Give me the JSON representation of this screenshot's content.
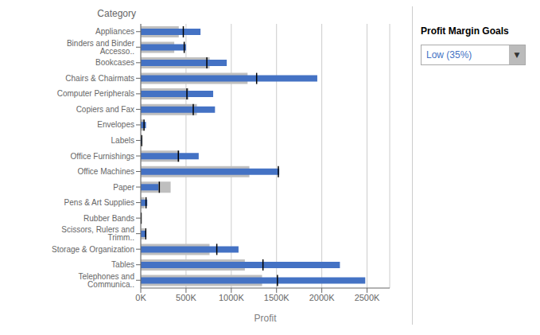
{
  "chart_data": {
    "type": "bar",
    "orientation": "horizontal",
    "ylabel": "Category",
    "xlabel": "Profit",
    "categories": [
      "Appliances",
      "Binders and Binder Accesso..",
      "Bookcases",
      "Chairs & Chairmats",
      "Computer Peripherals",
      "Copiers and Fax",
      "Envelopes",
      "Labels",
      "Office Furnishings",
      "Office Machines",
      "Paper",
      "Pens & Art Supplies",
      "Rubber Bands",
      "Scissors, Rulers and Trimm..",
      "Storage & Organization",
      "Tables",
      "Telephones and Communica.."
    ],
    "series": [
      {
        "type": "bar",
        "color": "#BFBFBF",
        "values": [
          420000,
          370000,
          760000,
          1180000,
          530000,
          620000,
          32000,
          6000,
          430000,
          1200000,
          330000,
          42000,
          4000,
          42000,
          760000,
          1150000,
          1340000
        ]
      },
      {
        "type": "bar",
        "color": "#4472C4",
        "values": [
          660000,
          500000,
          950000,
          1950000,
          800000,
          820000,
          58000,
          12000,
          640000,
          1530000,
          195000,
          72000,
          4000,
          62000,
          1080000,
          2200000,
          2480000
        ]
      },
      {
        "type": "scatter",
        "marker": "vline",
        "color": "#000000",
        "values": [
          470000,
          480000,
          730000,
          1280000,
          510000,
          580000,
          36000,
          10000,
          415000,
          1520000,
          205000,
          58000,
          4000,
          55000,
          840000,
          1350000,
          1510000
        ]
      }
    ],
    "xlim": [
      0,
      2750000
    ],
    "xticks": [
      {
        "value": 0,
        "label": "0K"
      },
      {
        "value": 500000,
        "label": "500K"
      },
      {
        "value": 1000000,
        "label": "1000K"
      },
      {
        "value": 1500000,
        "label": "1500K"
      },
      {
        "value": 2000000,
        "label": "2000K"
      },
      {
        "value": 2500000,
        "label": "2500K"
      }
    ],
    "grid": true,
    "annotations": [
      "Profit Margin Goals",
      "Low (35%)",
      "▼"
    ]
  }
}
